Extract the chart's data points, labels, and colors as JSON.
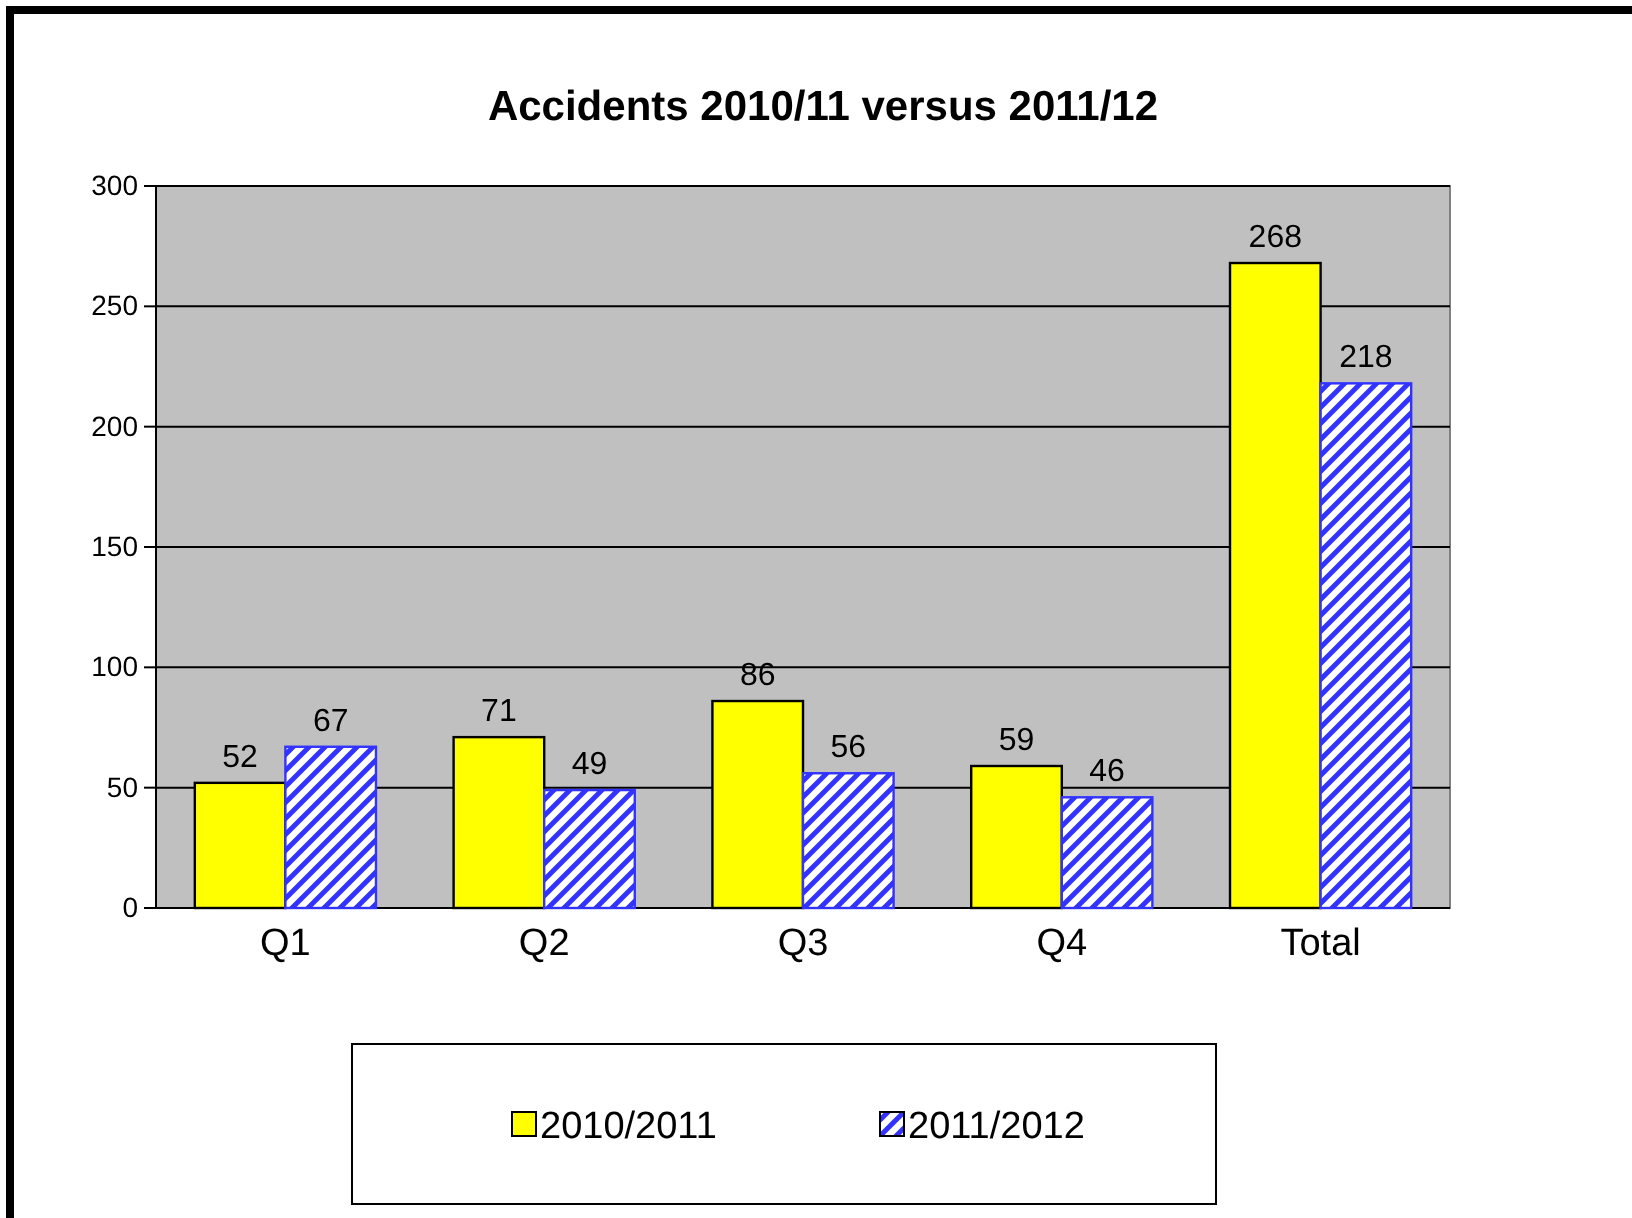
{
  "chart_data": {
    "type": "bar",
    "title": "Accidents 2010/11 versus 2011/12",
    "categories": [
      "Q1",
      "Q2",
      "Q3",
      "Q4",
      "Total"
    ],
    "series": [
      {
        "name": "2010/2011",
        "color": "#ffff00",
        "values": [
          52,
          71,
          86,
          59,
          268
        ]
      },
      {
        "name": "2011/2012",
        "color": "#3333ff",
        "values": [
          67,
          49,
          56,
          46,
          218
        ]
      }
    ],
    "ylim": [
      0,
      300
    ],
    "yticks": [
      0,
      50,
      100,
      150,
      200,
      250,
      300
    ],
    "grid": "y",
    "legend": "bottom",
    "data_labels": true
  }
}
